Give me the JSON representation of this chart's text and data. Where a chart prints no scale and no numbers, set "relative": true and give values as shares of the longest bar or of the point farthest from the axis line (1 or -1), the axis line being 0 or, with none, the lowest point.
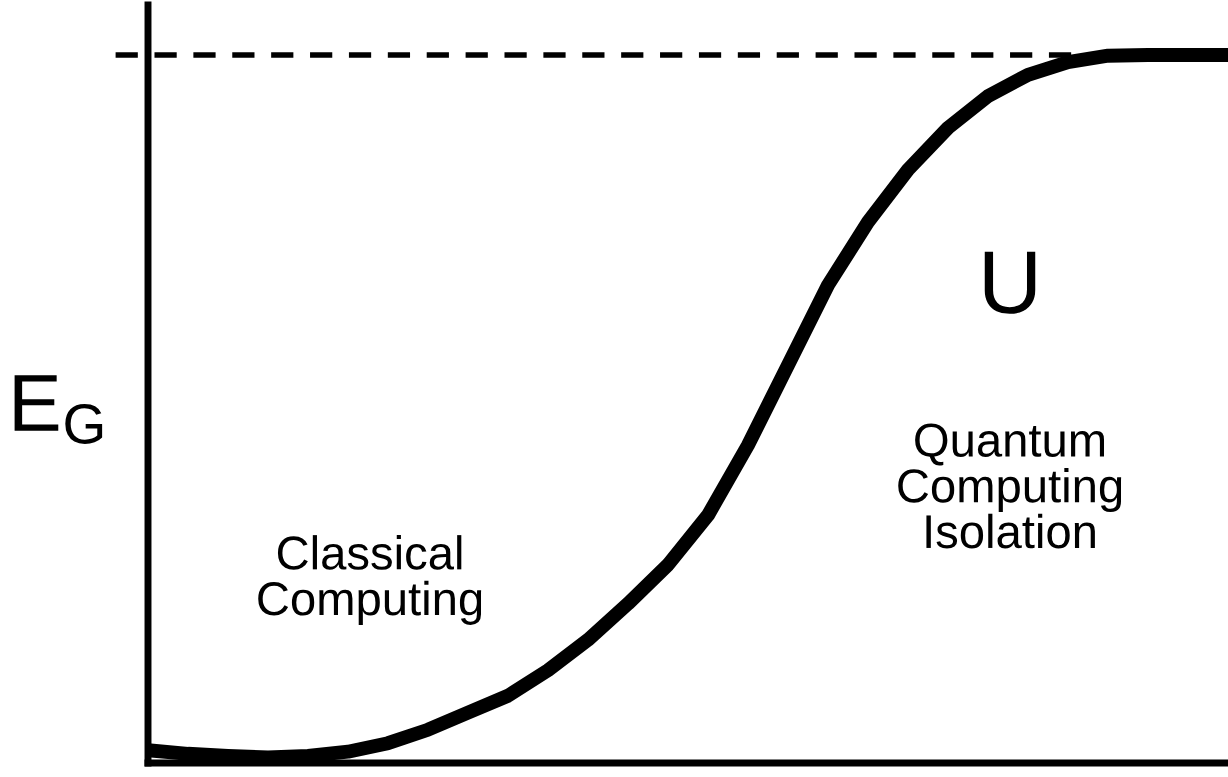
{
  "chart_data": {
    "type": "line",
    "relative": true,
    "ylabel": "E$_{G}$",
    "categories": [
      null,
      null,
      null,
      null,
      null,
      null,
      null,
      null,
      null,
      null,
      null,
      null,
      null,
      null,
      null,
      null,
      null,
      null,
      null,
      null,
      null,
      null,
      null,
      null,
      null,
      null,
      null,
      null
    ],
    "series": [
      {
        "color": "#000000",
        "values": [
          0.018,
          0.013,
          0.01,
          0.008,
          0.01,
          0.016,
          0.028,
          0.047,
          0.071,
          0.095,
          0.131,
          0.174,
          0.225,
          0.28,
          0.35,
          0.449,
          0.562,
          0.675,
          0.764,
          0.838,
          0.897,
          0.942,
          0.972,
          0.99,
          0.999,
          1,
          1,
          1
        ]
      }
    ],
    "ref_lines": [
      {
        "axis": "y",
        "value": 1,
        "color": "#000000",
        "line_style": "dashed"
      }
    ],
    "annotations": [
      "Classical\nComputing",
      "U",
      "Quantum\nComputing\nIsolation"
    ],
    "line_style": "solid",
    "legend": false
  }
}
